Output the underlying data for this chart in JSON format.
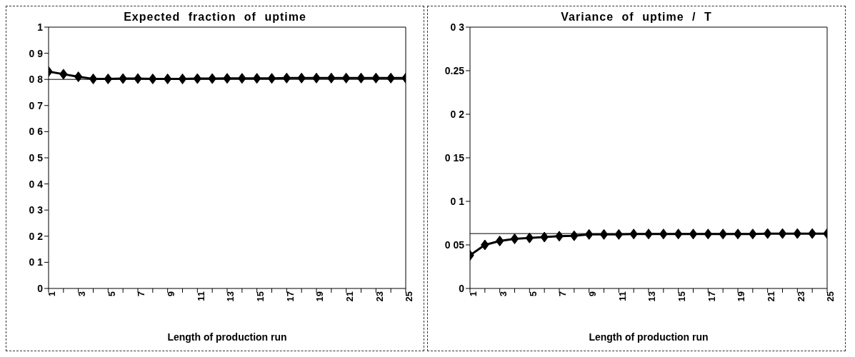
{
  "chart_data": [
    {
      "type": "line",
      "title": "Expected fraction of uptime",
      "xlabel": "Length of production run",
      "x": [
        1,
        2,
        3,
        4,
        5,
        6,
        7,
        8,
        9,
        10,
        11,
        12,
        13,
        14,
        15,
        16,
        17,
        18,
        19,
        20,
        21,
        22,
        23,
        24,
        25
      ],
      "series": [
        {
          "color": "#000000",
          "values": [
            0.83,
            0.82,
            0.81,
            0.802,
            0.802,
            0.803,
            0.803,
            0.802,
            0.802,
            0.802,
            0.803,
            0.803,
            0.804,
            0.804,
            0.804,
            0.804,
            0.805,
            0.805,
            0.805,
            0.805,
            0.805,
            0.805,
            0.805,
            0.805,
            0.805
          ]
        }
      ],
      "ref_lines": [
        {
          "axis": "y",
          "value": 0.8,
          "color": "#000000"
        }
      ],
      "xlim": [
        1,
        25
      ],
      "xticks": [
        1,
        {
          "value": 2,
          "label": null
        },
        3,
        {
          "value": 4,
          "label": null
        },
        5,
        {
          "value": 6,
          "label": null
        },
        7,
        {
          "value": 8,
          "label": null
        },
        9,
        {
          "value": 10,
          "label": null
        },
        11,
        {
          "value": 12,
          "label": null
        },
        13,
        {
          "value": 14,
          "label": null
        },
        15,
        {
          "value": 16,
          "label": null
        },
        17,
        {
          "value": 18,
          "label": null
        },
        19,
        {
          "value": 20,
          "label": null
        },
        21,
        {
          "value": 22,
          "label": null
        },
        23,
        {
          "value": 24,
          "label": null
        },
        25
      ],
      "ylim": [
        0,
        1
      ],
      "yticks": [
        0,
        {
          "value": 0.1,
          "label": "0 1"
        },
        {
          "value": 0.2,
          "label": "0 2"
        },
        {
          "value": 0.3,
          "label": "0 3"
        },
        {
          "value": 0.4,
          "label": "0 4"
        },
        {
          "value": 0.5,
          "label": "0 5"
        },
        {
          "value": 0.6,
          "label": "0 6"
        },
        {
          "value": 0.7,
          "label": "0 7"
        },
        {
          "value": 0.8,
          "label": "0 8"
        },
        {
          "value": 0.9,
          "label": "0 9"
        },
        1
      ],
      "marker": "diamond",
      "line_style": "solid"
    },
    {
      "type": "line",
      "title": "Variance of uptime / T",
      "xlabel": "Length of production run",
      "x": [
        1,
        2,
        3,
        4,
        5,
        6,
        7,
        8,
        9,
        10,
        11,
        12,
        13,
        14,
        15,
        16,
        17,
        18,
        19,
        20,
        21,
        22,
        23,
        24,
        25
      ],
      "series": [
        {
          "color": "#000000",
          "values": [
            0.038,
            0.05,
            0.0545,
            0.057,
            0.058,
            0.059,
            0.06,
            0.0605,
            0.062,
            0.062,
            0.062,
            0.0625,
            0.0625,
            0.0625,
            0.0625,
            0.0625,
            0.0625,
            0.0625,
            0.0625,
            0.0625,
            0.063,
            0.063,
            0.063,
            0.063,
            0.063
          ]
        }
      ],
      "ref_lines": [
        {
          "axis": "y",
          "value": 0.063,
          "color": "#000000"
        }
      ],
      "xlim": [
        1,
        25
      ],
      "xticks": [
        1,
        {
          "value": 2,
          "label": null
        },
        3,
        {
          "value": 4,
          "label": null
        },
        5,
        {
          "value": 6,
          "label": null
        },
        7,
        {
          "value": 8,
          "label": null
        },
        9,
        {
          "value": 10,
          "label": null
        },
        11,
        {
          "value": 12,
          "label": null
        },
        13,
        {
          "value": 14,
          "label": null
        },
        15,
        {
          "value": 16,
          "label": null
        },
        17,
        {
          "value": 18,
          "label": null
        },
        19,
        {
          "value": 20,
          "label": null
        },
        21,
        {
          "value": 22,
          "label": null
        },
        23,
        {
          "value": 24,
          "label": null
        },
        25
      ],
      "ylim": [
        0,
        0.3
      ],
      "yticks": [
        0,
        {
          "value": 0.05,
          "label": "0 05"
        },
        {
          "value": 0.1,
          "label": "0 1"
        },
        {
          "value": 0.15,
          "label": "0 15"
        },
        {
          "value": 0.2,
          "label": "0 2"
        },
        0.25,
        {
          "value": 0.3,
          "label": "0 3"
        }
      ],
      "marker": "diamond",
      "line_style": "solid"
    }
  ]
}
